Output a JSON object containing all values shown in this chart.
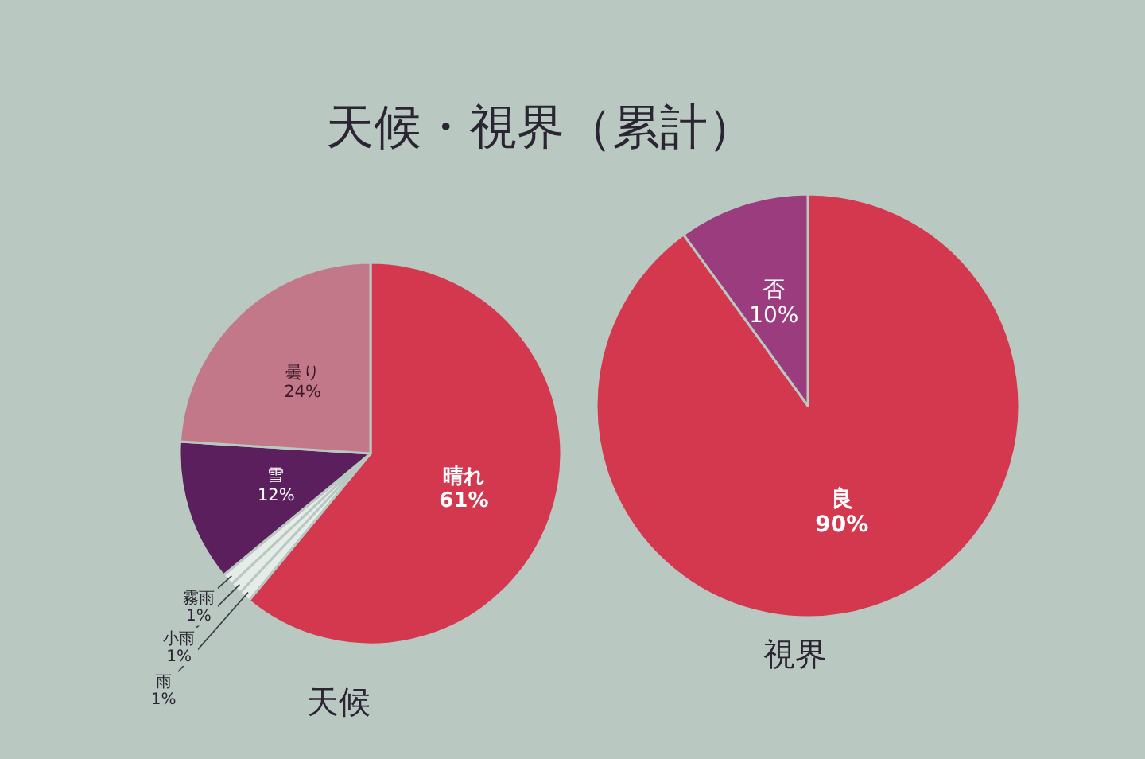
{
  "chart_data": [
    {
      "type": "pie",
      "title": "天候・視界（累計）",
      "xlabel": "天候",
      "categories": [
        "晴れ",
        "雨",
        "小雨",
        "霧雨",
        "雪",
        "曇り"
      ],
      "values": [
        61,
        1,
        1,
        1,
        12,
        24
      ],
      "colors": [
        "#d4384f",
        "#e6ece8",
        "#e6ece8",
        "#e6ece8",
        "#5a1f5c",
        "#c27888"
      ],
      "value_labels": [
        "61%",
        "1%",
        "1%",
        "1%",
        "12%",
        "24%"
      ]
    },
    {
      "type": "pie",
      "xlabel": "視界",
      "categories": [
        "良",
        "否"
      ],
      "values": [
        90,
        10
      ],
      "colors": [
        "#d4384f",
        "#9a3c7e"
      ],
      "value_labels": [
        "90%",
        "10%"
      ]
    }
  ]
}
